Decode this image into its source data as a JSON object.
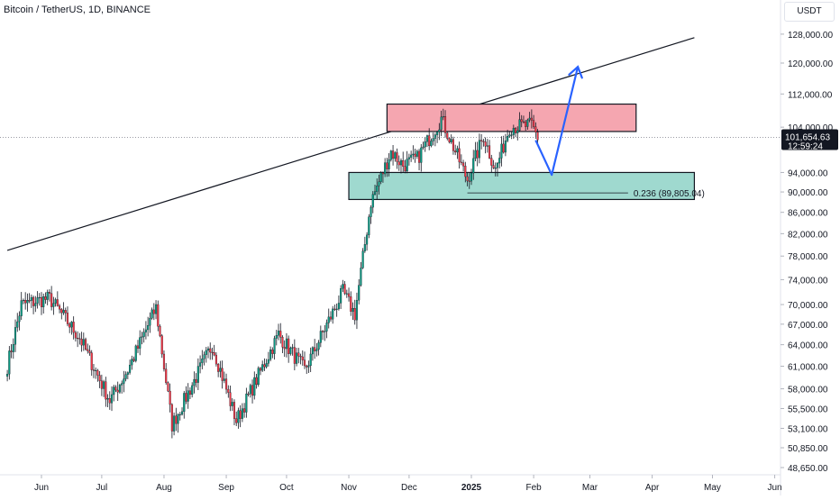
{
  "header": {
    "ticker": "Bitcoin / TetherUS, 1D, BINANCE",
    "currency": "USDT"
  },
  "colors": {
    "up": "#089981",
    "down": "#f23645",
    "wick": "#131722",
    "resistance_fill": "#f5a6b0",
    "support_fill": "#9fd9cf",
    "arrow": "#2962ff",
    "trendline": "#131722"
  },
  "chart_data": {
    "type": "candlestick",
    "symbol": "BTCUSDT",
    "interval": "1D",
    "exchange": "BINANCE",
    "y_axis": {
      "ticks": [
        {
          "value": 128000,
          "label": "128,000.00"
        },
        {
          "value": 120000,
          "label": "120,000.00"
        },
        {
          "value": 112000,
          "label": "112,000.00"
        },
        {
          "value": 104000,
          "label": "104,000.00"
        },
        {
          "value": 94000,
          "label": "94,000.00"
        },
        {
          "value": 90000,
          "label": "90,000.00"
        },
        {
          "value": 86000,
          "label": "86,000.00"
        },
        {
          "value": 82000,
          "label": "82,000.00"
        },
        {
          "value": 78000,
          "label": "78,000.00"
        },
        {
          "value": 74000,
          "label": "74,000.00"
        },
        {
          "value": 70000,
          "label": "70,000.00"
        },
        {
          "value": 67000,
          "label": "67,000.00"
        },
        {
          "value": 64000,
          "label": "64,000.00"
        },
        {
          "value": 61000,
          "label": "61,000.00"
        },
        {
          "value": 58000,
          "label": "58,000.00"
        },
        {
          "value": 55500,
          "label": "55,500.00"
        },
        {
          "value": 53100,
          "label": "53,100.00"
        },
        {
          "value": 50850,
          "label": "50,850.00"
        },
        {
          "value": 48650,
          "label": "48,650.00"
        }
      ],
      "scale": "log"
    },
    "x_axis": {
      "ticks": [
        {
          "date": "2024-06-01",
          "label": "Jun",
          "bold": false
        },
        {
          "date": "2024-07-01",
          "label": "Jul",
          "bold": false
        },
        {
          "date": "2024-08-01",
          "label": "Aug",
          "bold": false
        },
        {
          "date": "2024-09-01",
          "label": "Sep",
          "bold": false
        },
        {
          "date": "2024-10-01",
          "label": "Oct",
          "bold": false
        },
        {
          "date": "2024-11-01",
          "label": "Nov",
          "bold": false
        },
        {
          "date": "2024-12-01",
          "label": "Dec",
          "bold": false
        },
        {
          "date": "2025-01-01",
          "label": "2025",
          "bold": true
        },
        {
          "date": "2025-02-01",
          "label": "Feb",
          "bold": false
        },
        {
          "date": "2025-03-01",
          "label": "Mar",
          "bold": false
        },
        {
          "date": "2025-04-01",
          "label": "Apr",
          "bold": false
        },
        {
          "date": "2025-05-01",
          "label": "May",
          "bold": false
        },
        {
          "date": "2025-06-01",
          "label": "Jun",
          "bold": false
        }
      ]
    },
    "last_price": {
      "value": 101654.63,
      "label": "101,654.63",
      "countdown": "12:59:24"
    },
    "anchors": [
      {
        "date": "2024-05-15",
        "close": 61000
      },
      {
        "date": "2024-05-22",
        "close": 70000
      },
      {
        "date": "2024-06-05",
        "close": 71000
      },
      {
        "date": "2024-06-20",
        "close": 65000
      },
      {
        "date": "2024-07-05",
        "close": 56500
      },
      {
        "date": "2024-07-14",
        "close": 60500
      },
      {
        "date": "2024-07-28",
        "close": 69500
      },
      {
        "date": "2024-08-05",
        "close": 53500
      },
      {
        "date": "2024-08-25",
        "close": 64000
      },
      {
        "date": "2024-09-06",
        "close": 54000
      },
      {
        "date": "2024-09-27",
        "close": 65500
      },
      {
        "date": "2024-10-10",
        "close": 60500
      },
      {
        "date": "2024-10-29",
        "close": 72000
      },
      {
        "date": "2024-11-04",
        "close": 68500
      },
      {
        "date": "2024-11-12",
        "close": 88000
      },
      {
        "date": "2024-11-22",
        "close": 98500
      },
      {
        "date": "2024-11-28",
        "close": 95500
      },
      {
        "date": "2024-12-05",
        "close": 97000
      },
      {
        "date": "2024-12-17",
        "close": 106000
      },
      {
        "date": "2024-12-30",
        "close": 92500
      },
      {
        "date": "2025-01-07",
        "close": 102000
      },
      {
        "date": "2025-01-13",
        "close": 94500
      },
      {
        "date": "2025-01-20",
        "close": 104000
      },
      {
        "date": "2025-01-31",
        "close": 104500
      },
      {
        "date": "2025-02-03",
        "close": 101654.63
      }
    ],
    "annotations": {
      "trendline": {
        "start": {
          "date": "2024-05-15",
          "price": 79000
        },
        "end": {
          "date": "2025-04-22",
          "price": 127000
        }
      },
      "resistance_zone": {
        "from_date": "2024-11-20",
        "to_date": "2025-03-24",
        "top": 109500,
        "bottom": 103000
      },
      "support_zone": {
        "from_date": "2024-11-01",
        "to_date": "2025-04-22",
        "top": 94000,
        "bottom": 88500
      },
      "fib_line": {
        "from_date": "2024-12-30",
        "to_date": "2025-03-20",
        "price": 89805.04,
        "label": "0.236 (89,805.04)"
      },
      "projection_path": [
        {
          "date": "2025-02-02",
          "price": 101000
        },
        {
          "date": "2025-02-10",
          "price": 93500
        },
        {
          "date": "2025-02-23",
          "price": 119000
        }
      ]
    }
  }
}
